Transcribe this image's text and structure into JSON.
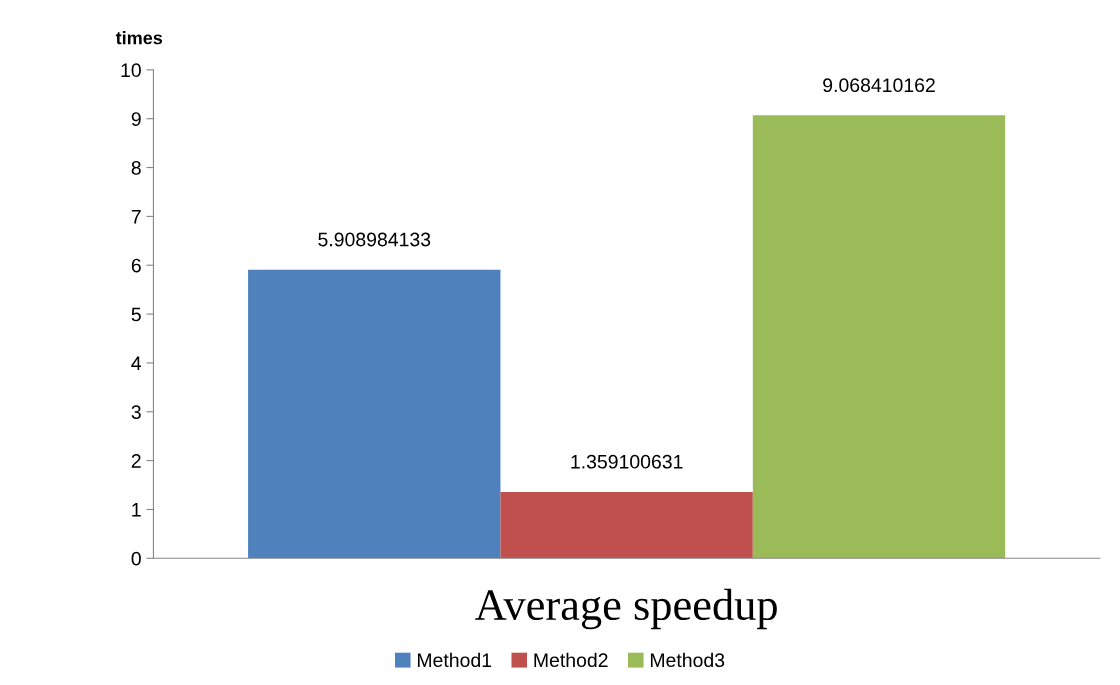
{
  "chart_data": {
    "type": "bar",
    "ylabel": "times",
    "categories": [
      "Average speedup"
    ],
    "series": [
      {
        "name": "Method1",
        "color": "#4f81bd",
        "values": [
          5.908984133
        ]
      },
      {
        "name": "Method2",
        "color": "#c0504d",
        "values": [
          1.359100631
        ]
      },
      {
        "name": "Method3",
        "color": "#9bbb59",
        "values": [
          9.068410162
        ]
      }
    ],
    "ylim": [
      0,
      10
    ],
    "yticks": [
      0,
      1,
      2,
      3,
      4,
      5,
      6,
      7,
      8,
      9,
      10
    ],
    "data_labels": true,
    "legend": "bottom",
    "grid": false
  }
}
